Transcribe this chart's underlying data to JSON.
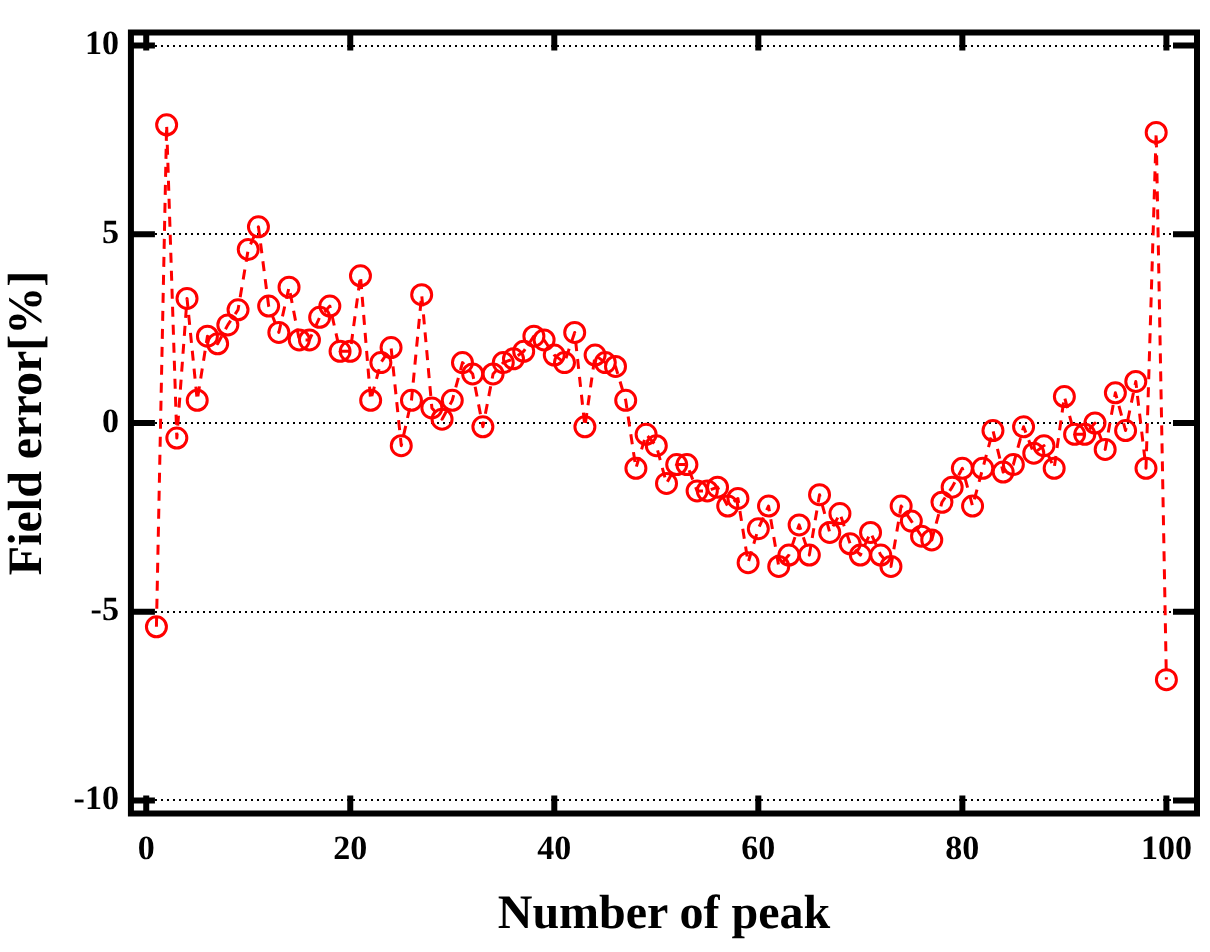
{
  "chart_data": {
    "type": "line",
    "xlabel": "Number of peak",
    "ylabel": "Field error[%]",
    "x": [
      1,
      2,
      3,
      4,
      5,
      6,
      7,
      8,
      9,
      10,
      11,
      12,
      13,
      14,
      15,
      16,
      17,
      18,
      19,
      20,
      21,
      22,
      23,
      24,
      25,
      26,
      27,
      28,
      29,
      30,
      31,
      32,
      33,
      34,
      35,
      36,
      37,
      38,
      39,
      40,
      41,
      42,
      43,
      44,
      45,
      46,
      47,
      48,
      49,
      50,
      51,
      52,
      53,
      54,
      55,
      56,
      57,
      58,
      59,
      60,
      61,
      62,
      63,
      64,
      65,
      66,
      67,
      68,
      69,
      70,
      71,
      72,
      73,
      74,
      75,
      76,
      77,
      78,
      79,
      80,
      81,
      82,
      83,
      84,
      85,
      86,
      87,
      88,
      89,
      90,
      91,
      92,
      93,
      94,
      95,
      96,
      97,
      98,
      99,
      100
    ],
    "series": [
      {
        "color": "#ff0000",
        "values": [
          -5.4,
          7.9,
          -0.4,
          3.3,
          0.6,
          2.3,
          2.1,
          2.6,
          3.0,
          4.6,
          5.2,
          3.1,
          2.4,
          3.6,
          2.2,
          2.2,
          2.8,
          3.1,
          1.9,
          1.9,
          3.9,
          0.6,
          1.6,
          2.0,
          -0.6,
          0.6,
          3.4,
          0.4,
          0.1,
          0.6,
          1.6,
          1.3,
          -0.1,
          1.3,
          1.6,
          1.7,
          1.9,
          2.3,
          2.2,
          1.8,
          1.6,
          2.4,
          -0.1,
          1.8,
          1.6,
          1.5,
          0.6,
          -1.2,
          -0.3,
          -0.6,
          -1.6,
          -1.1,
          -1.1,
          -1.8,
          -1.8,
          -1.7,
          -2.2,
          -2.0,
          -3.7,
          -2.8,
          -2.2,
          -3.8,
          -3.5,
          -2.7,
          -3.5,
          -1.9,
          -2.9,
          -2.4,
          -3.2,
          -3.5,
          -2.9,
          -3.5,
          -3.8,
          -2.2,
          -2.6,
          -3.0,
          -3.1,
          -2.1,
          -1.7,
          -1.2,
          -2.2,
          -1.2,
          -0.2,
          -1.3,
          -1.1,
          -0.1,
          -0.8,
          -0.6,
          -1.2,
          0.7,
          -0.3,
          -0.3,
          0.0,
          -0.7,
          0.8,
          -0.2,
          1.1,
          -1.2,
          7.7,
          -6.8
        ]
      }
    ],
    "xlim": [
      -1.5,
      103
    ],
    "ylim": [
      -10.35,
      10.35
    ],
    "xticks": [
      0,
      20,
      40,
      60,
      80,
      100
    ],
    "yticks": [
      -10,
      -5,
      0,
      5,
      10
    ],
    "grid": "y",
    "marker": "circle",
    "line_style": "dashed"
  }
}
